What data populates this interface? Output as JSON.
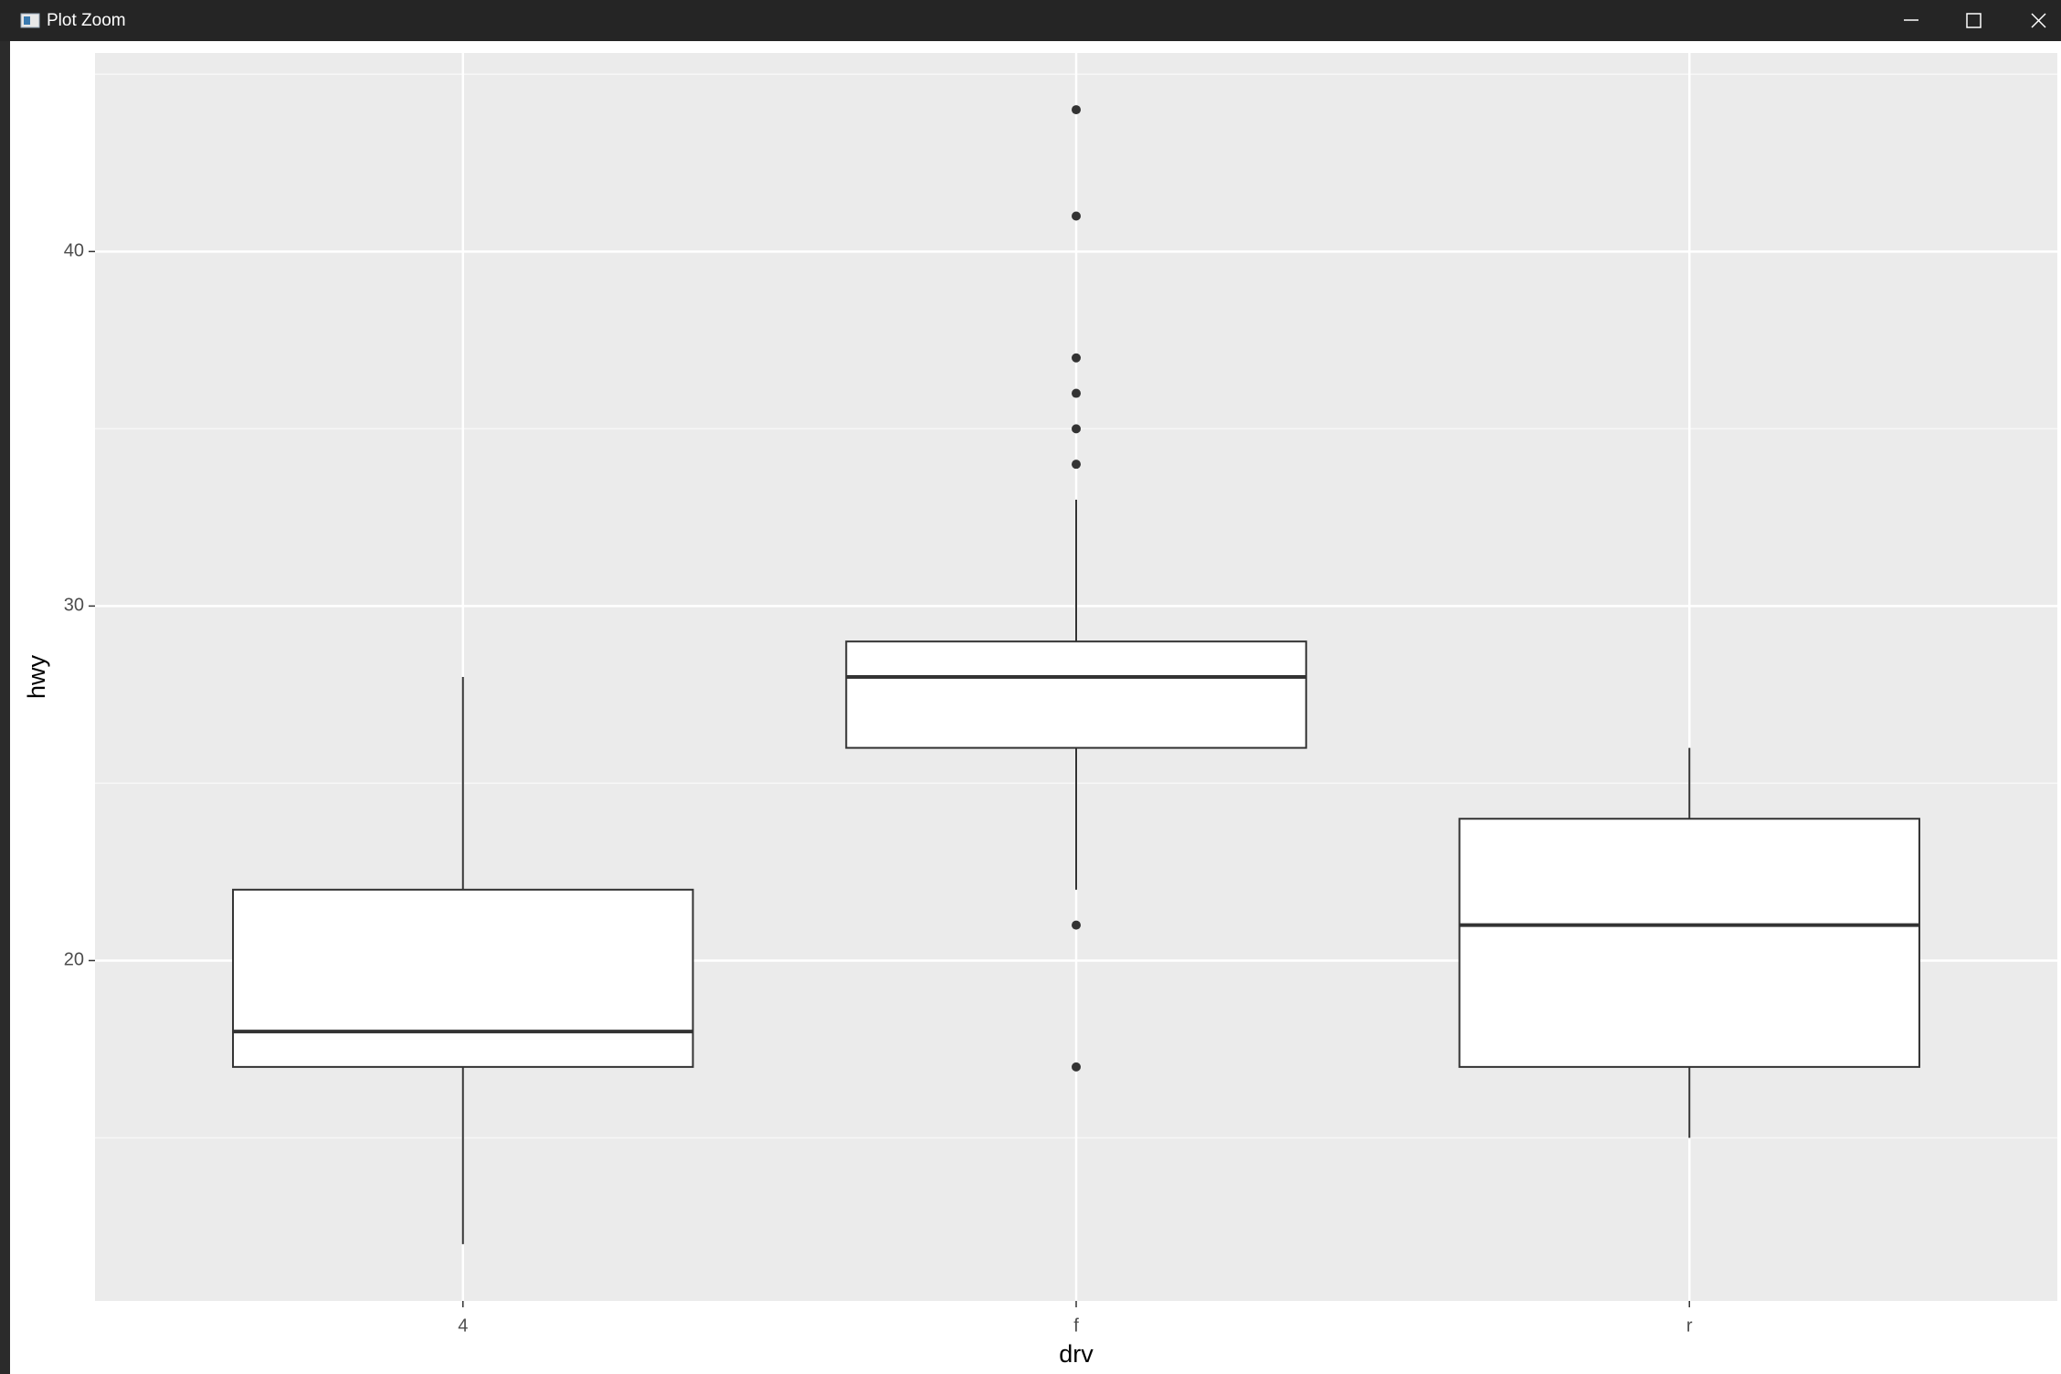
{
  "window": {
    "title": "Plot Zoom"
  },
  "chart_data": {
    "type": "boxplot",
    "x_label": "drv",
    "y_label": "hwy",
    "categories": [
      "4",
      "f",
      "r"
    ],
    "boxes": [
      {
        "whisker_low": 12,
        "q1": 17,
        "median": 18,
        "q3": 22,
        "whisker_high": 28,
        "outliers": []
      },
      {
        "whisker_low": 22,
        "q1": 26,
        "median": 28,
        "q3": 29,
        "whisker_high": 33,
        "outliers": [
          44,
          41,
          37,
          36,
          35,
          34,
          21,
          17
        ]
      },
      {
        "whisker_low": 15,
        "q1": 17,
        "median": 21,
        "q3": 24,
        "whisker_high": 26,
        "outliers": []
      }
    ],
    "ylim": [
      10.4,
      45.6
    ],
    "yticks": [
      20,
      30,
      40
    ],
    "y_minor_grid": [
      15,
      25,
      35,
      45
    ],
    "grid": true,
    "panel_color": "#ebebeb",
    "box_fill": "#ffffff",
    "line_color": "#333333"
  }
}
